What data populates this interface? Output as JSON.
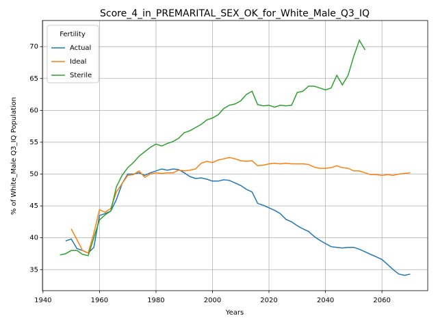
{
  "chart_data": {
    "type": "line",
    "title": "Score_4_in_PREMARITAL_SEX_OK_for_White_Male_Q3_IQ",
    "x_label": "Years",
    "y_label": "% of White_Male Q3_IQ Population",
    "legend_title": "Fertility",
    "legend_position": "upper left",
    "grid": true,
    "x": [
      1946,
      1948,
      1950,
      1952,
      1954,
      1956,
      1958,
      1960,
      1962,
      1964,
      1966,
      1968,
      1970,
      1972,
      1974,
      1976,
      1978,
      1980,
      1982,
      1984,
      1986,
      1988,
      1990,
      1992,
      1994,
      1996,
      1998,
      2000,
      2002,
      2004,
      2006,
      2008,
      2010,
      2012,
      2014,
      2016,
      2018,
      2020,
      2022,
      2024,
      2026,
      2028,
      2030,
      2032,
      2034,
      2036,
      2038,
      2040,
      2042,
      2044,
      2046,
      2048,
      2050,
      2052,
      2054,
      2056,
      2058,
      2060,
      2062,
      2064,
      2066,
      2068,
      2070
    ],
    "series": [
      {
        "name": "Actual",
        "color": "#1f77b4",
        "values": [
          null,
          39.5,
          39.8,
          38.3,
          38.0,
          37.6,
          38.5,
          43.5,
          43.8,
          44.2,
          46.0,
          48.5,
          50.0,
          50.0,
          50.2,
          49.8,
          50.2,
          50.5,
          50.8,
          50.6,
          50.8,
          50.7,
          50.2,
          49.6,
          49.3,
          49.4,
          49.2,
          48.9,
          48.9,
          49.1,
          49.0,
          48.6,
          48.2,
          47.6,
          47.2,
          45.4,
          45.1,
          44.7,
          44.3,
          43.8,
          42.9,
          42.5,
          41.9,
          41.4,
          41.0,
          40.2,
          39.6,
          39.1,
          38.6,
          38.5,
          38.4,
          38.5,
          38.5,
          38.2,
          37.8,
          37.4,
          37.0,
          36.6,
          35.8,
          35.0,
          34.3,
          34.1,
          34.3
        ]
      },
      {
        "name": "Ideal",
        "color": "#ff7f0e",
        "values": [
          null,
          null,
          41.4,
          39.7,
          38.0,
          37.6,
          40.7,
          44.4,
          44.0,
          44.6,
          47.2,
          48.5,
          49.8,
          49.9,
          50.5,
          49.5,
          50.0,
          50.2,
          50.1,
          50.2,
          50.2,
          50.6,
          50.5,
          50.6,
          50.8,
          51.7,
          52.0,
          51.8,
          52.2,
          52.4,
          52.6,
          52.4,
          52.1,
          52.0,
          52.1,
          51.3,
          51.4,
          51.6,
          51.7,
          51.6,
          51.7,
          51.6,
          51.6,
          51.6,
          51.5,
          51.1,
          50.9,
          50.9,
          51.0,
          51.3,
          51.0,
          50.9,
          50.5,
          50.5,
          50.2,
          49.9,
          49.9,
          49.8,
          49.9,
          49.8,
          50.0,
          50.1,
          50.2
        ]
      },
      {
        "name": "Sterile",
        "color": "#2ca02c",
        "values": [
          37.3,
          37.5,
          38.0,
          38.0,
          37.4,
          37.2,
          40.0,
          42.8,
          43.6,
          44.2,
          48.0,
          49.8,
          51.0,
          51.8,
          52.8,
          53.5,
          54.2,
          54.7,
          54.4,
          54.8,
          55.1,
          55.6,
          56.5,
          56.8,
          57.3,
          57.8,
          58.5,
          58.8,
          59.3,
          60.3,
          60.8,
          61.0,
          61.5,
          62.5,
          63.0,
          60.9,
          60.7,
          60.8,
          60.5,
          60.8,
          60.7,
          60.8,
          62.8,
          63.0,
          63.8,
          63.8,
          63.5,
          63.2,
          63.5,
          65.5,
          64.0,
          65.5,
          68.5,
          71.0,
          69.5,
          null,
          null,
          null,
          null,
          null,
          null,
          null,
          null
        ]
      }
    ],
    "xlim": [
      1939.8,
      2076.2
    ],
    "xticks": [
      1940,
      1960,
      1980,
      2000,
      2020,
      2040,
      2060
    ],
    "ylim": [
      31.7,
      74.1
    ],
    "yticks": [
      35,
      40,
      45,
      50,
      55,
      60,
      65,
      70
    ]
  }
}
